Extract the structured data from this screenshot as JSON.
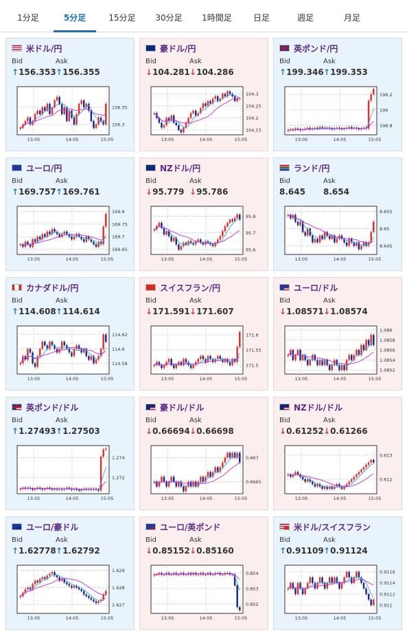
{
  "tabs": [
    "1分足",
    "5分足",
    "15分足",
    "30分足",
    "1時間足",
    "日足",
    "週足",
    "月足"
  ],
  "active_tab": 1,
  "labels": {
    "bid": "Bid",
    "ask": "Ask"
  },
  "colors": {
    "bull": "#e0322d",
    "bear": "#1a2a8c",
    "ma_short": "#3aa6d8",
    "ma_long": "#c42bd6",
    "up_arrow": "#1e7fd0",
    "down_arrow": "#d23c3c",
    "pair_text": "#5b2a86"
  },
  "cards": [
    {
      "pair": "米ドル/円",
      "flag": "us-flag",
      "trend": "up",
      "bid": "156.353",
      "ask": "156.355",
      "chart_data": {
        "type": "candlestick",
        "x_ticks": [
          "13:05",
          "14:05",
          "15:05"
        ],
        "y_ticks": [
          "156.35",
          "156.3"
        ],
        "ylim": [
          156.27,
          156.41
        ],
        "closes": [
          156.29,
          156.3,
          156.31,
          156.32,
          156.3,
          156.31,
          156.33,
          156.34,
          156.33,
          156.35,
          156.34,
          156.36,
          156.33,
          156.35,
          156.37,
          156.38,
          156.36,
          156.33,
          156.35,
          156.31,
          156.34,
          156.32,
          156.3,
          156.33,
          156.36,
          156.37,
          156.35,
          156.36,
          156.34,
          156.31,
          156.29,
          156.3,
          156.32,
          156.31,
          156.3,
          156.36
        ]
      }
    },
    {
      "pair": "豪ドル/円",
      "flag": "au-flag",
      "trend": "down",
      "bid": "104.281",
      "ask": "104.286",
      "chart_data": {
        "type": "candlestick",
        "x_ticks": [
          "13:05",
          "14:05",
          "15:05"
        ],
        "y_ticks": [
          "104.3",
          "104.25",
          "104.2",
          "104.15"
        ],
        "ylim": [
          104.13,
          104.33
        ],
        "closes": [
          104.22,
          104.2,
          104.18,
          104.16,
          104.17,
          104.2,
          104.19,
          104.21,
          104.18,
          104.17,
          104.15,
          104.14,
          104.16,
          104.18,
          104.2,
          104.22,
          104.23,
          104.21,
          104.22,
          104.24,
          104.26,
          104.25,
          104.27,
          104.26,
          104.28,
          104.29,
          104.27,
          104.28,
          104.3,
          104.29,
          104.31,
          104.3,
          104.29,
          104.27,
          104.28,
          104.28
        ]
      }
    },
    {
      "pair": "英ポンド/円",
      "flag": "gb-flag",
      "trend": "up",
      "bid": "199.346",
      "ask": "199.353",
      "chart_data": {
        "type": "candlestick",
        "x_ticks": [
          "13:05",
          "14:05",
          "15:05"
        ],
        "y_ticks": [
          "199.2",
          "199",
          "198.8"
        ],
        "ylim": [
          198.68,
          199.3
        ],
        "closes": [
          198.74,
          198.75,
          198.74,
          198.76,
          198.75,
          198.74,
          198.75,
          198.76,
          198.77,
          198.75,
          198.76,
          198.77,
          198.76,
          198.78,
          198.77,
          198.76,
          198.77,
          198.76,
          198.75,
          198.76,
          198.77,
          198.76,
          198.75,
          198.76,
          198.77,
          198.78,
          198.76,
          198.77,
          198.76,
          198.75,
          198.76,
          198.77,
          198.76,
          199.12,
          199.2,
          199.27
        ]
      }
    },
    {
      "pair": "ユーロ/円",
      "flag": "eu-flag",
      "trend": "up",
      "bid": "169.757",
      "ask": "169.761",
      "chart_data": {
        "type": "candlestick",
        "x_ticks": [
          "13:05",
          "14:05",
          "15:05"
        ],
        "y_ticks": [
          "169.8",
          "169.75",
          "169.7",
          "169.65"
        ],
        "ylim": [
          169.63,
          169.82
        ],
        "closes": [
          169.67,
          169.66,
          169.68,
          169.67,
          169.66,
          169.69,
          169.68,
          169.7,
          169.69,
          169.71,
          169.7,
          169.72,
          169.71,
          169.73,
          169.72,
          169.71,
          169.7,
          169.71,
          169.72,
          169.71,
          169.7,
          169.69,
          169.7,
          169.71,
          169.7,
          169.69,
          169.68,
          169.7,
          169.69,
          169.68,
          169.67,
          169.66,
          169.68,
          169.67,
          169.74,
          169.79
        ]
      }
    },
    {
      "pair": "NZドル/円",
      "flag": "nz-flag",
      "trend": "down",
      "bid": "95.779",
      "ask": "95.786",
      "chart_data": {
        "type": "candlestick",
        "x_ticks": [
          "13:05",
          "14:05",
          "15:05"
        ],
        "y_ticks": [
          "95.8",
          "95.7",
          "95.6"
        ],
        "ylim": [
          95.57,
          95.86
        ],
        "closes": [
          95.72,
          95.74,
          95.76,
          95.73,
          95.69,
          95.71,
          95.68,
          95.65,
          95.67,
          95.63,
          95.6,
          95.62,
          95.64,
          95.63,
          95.65,
          95.64,
          95.63,
          95.65,
          95.66,
          95.64,
          95.63,
          95.65,
          95.64,
          95.63,
          95.62,
          95.64,
          95.66,
          95.68,
          95.71,
          95.74,
          95.76,
          95.78,
          95.77,
          95.79,
          95.81,
          95.78
        ]
      }
    },
    {
      "pair": "ランド/円",
      "flag": "za-flag",
      "trend": "none",
      "bid": "8.645",
      "ask": "8.654",
      "chart_data": {
        "type": "candlestick",
        "x_ticks": [
          "13:05",
          "14:05",
          "15:05"
        ],
        "y_ticks": [
          "8.655",
          "8.65",
          "8.645"
        ],
        "ylim": [
          8.6425,
          8.6565
        ],
        "closes": [
          8.654,
          8.653,
          8.654,
          8.652,
          8.651,
          8.652,
          8.649,
          8.648,
          8.65,
          8.648,
          8.646,
          8.647,
          8.646,
          8.648,
          8.647,
          8.649,
          8.648,
          8.647,
          8.648,
          8.646,
          8.647,
          8.648,
          8.647,
          8.646,
          8.645,
          8.647,
          8.646,
          8.645,
          8.646,
          8.644,
          8.645,
          8.646,
          8.645,
          8.646,
          8.649,
          8.652
        ]
      }
    },
    {
      "pair": "カナダドル/円",
      "flag": "ca-flag",
      "trend": "up",
      "bid": "114.608",
      "ask": "114.614",
      "chart_data": {
        "type": "candlestick",
        "x_ticks": [
          "13:05",
          "14:05",
          "15:05"
        ],
        "y_ticks": [
          "114.62",
          "114.6",
          "114.58"
        ],
        "ylim": [
          114.565,
          114.632
        ],
        "closes": [
          114.58,
          114.59,
          114.585,
          114.6,
          114.595,
          114.58,
          114.575,
          114.59,
          114.6,
          114.61,
          114.605,
          114.6,
          114.61,
          114.605,
          114.6,
          114.595,
          114.6,
          114.61,
          114.605,
          114.6,
          114.595,
          114.59,
          114.6,
          114.605,
          114.6,
          114.595,
          114.6,
          114.59,
          114.585,
          114.59,
          114.58,
          114.585,
          114.59,
          114.6,
          114.62,
          114.61
        ]
      }
    },
    {
      "pair": "スイスフラン/円",
      "flag": "ch-flag",
      "trend": "down",
      "bid": "171.591",
      "ask": "171.607",
      "chart_data": {
        "type": "candlestick",
        "x_ticks": [
          "13:05",
          "14:05",
          "15:05"
        ],
        "y_ticks": [
          "171.6",
          "171.55",
          "171.5"
        ],
        "ylim": [
          171.47,
          171.63
        ],
        "closes": [
          171.5,
          171.51,
          171.5,
          171.49,
          171.5,
          171.51,
          171.52,
          171.5,
          171.49,
          171.5,
          171.51,
          171.5,
          171.52,
          171.51,
          171.5,
          171.49,
          171.5,
          171.51,
          171.52,
          171.53,
          171.52,
          171.51,
          171.53,
          171.52,
          171.51,
          171.52,
          171.53,
          171.52,
          171.51,
          171.52,
          171.51,
          171.5,
          171.52,
          171.51,
          171.56,
          171.61
        ]
      }
    },
    {
      "pair": "ユーロ/ドル",
      "flag": "eu-us-flag",
      "trend": "down",
      "bid": "1.08571",
      "ask": "1.08574",
      "chart_data": {
        "type": "candlestick",
        "x_ticks": [
          "13:05",
          "14:05",
          "15:05"
        ],
        "y_ticks": [
          "1.086",
          "1.0858",
          "1.0856",
          "1.0854",
          "1.0852"
        ],
        "ylim": [
          1.08512,
          1.08608
        ],
        "closes": [
          1.0855,
          1.0856,
          1.0854,
          1.0855,
          1.0856,
          1.0854,
          1.0855,
          1.0854,
          1.0853,
          1.0854,
          1.0855,
          1.0854,
          1.0853,
          1.0854,
          1.0853,
          1.0854,
          1.0853,
          1.0852,
          1.0853,
          1.0854,
          1.0853,
          1.0852,
          1.0853,
          1.0852,
          1.0854,
          1.0855,
          1.0854,
          1.0855,
          1.0856,
          1.0855,
          1.0857,
          1.0856,
          1.0858,
          1.0857,
          1.0859,
          1.0857
        ]
      }
    },
    {
      "pair": "英ポンド/ドル",
      "flag": "gb-us-flag",
      "trend": "up",
      "bid": "1.27493",
      "ask": "1.27503",
      "chart_data": {
        "type": "candlestick",
        "x_ticks": [
          "13:05",
          "14:05",
          "15:05"
        ],
        "y_ticks": [
          "1.274",
          "1.272"
        ],
        "ylim": [
          1.2704,
          1.2752
        ],
        "closes": [
          1.2709,
          1.271,
          1.2709,
          1.271,
          1.2709,
          1.2708,
          1.2709,
          1.271,
          1.2709,
          1.2708,
          1.2709,
          1.271,
          1.2709,
          1.2708,
          1.2709,
          1.2708,
          1.2709,
          1.2708,
          1.2709,
          1.271,
          1.2709,
          1.2708,
          1.2709,
          1.2708,
          1.2707,
          1.2708,
          1.2709,
          1.2708,
          1.2709,
          1.2708,
          1.2709,
          1.2708,
          1.2707,
          1.2741,
          1.2748,
          1.2749
        ]
      }
    },
    {
      "pair": "豪ドル/ドル",
      "flag": "au-us-flag",
      "trend": "down",
      "bid": "0.66694",
      "ask": "0.66698",
      "chart_data": {
        "type": "candlestick",
        "x_ticks": [
          "13:05",
          "14:05",
          "15:05"
        ],
        "y_ticks": [
          "0.667",
          "0.6665"
        ],
        "ylim": [
          0.66625,
          0.66725
        ],
        "closes": [
          0.6665,
          0.6664,
          0.6665,
          0.6666,
          0.6665,
          0.6664,
          0.6665,
          0.6666,
          0.6665,
          0.6664,
          0.6665,
          0.6664,
          0.6663,
          0.6664,
          0.6665,
          0.6664,
          0.6665,
          0.6664,
          0.6665,
          0.6666,
          0.6665,
          0.6666,
          0.6667,
          0.6666,
          0.6667,
          0.6668,
          0.6667,
          0.6668,
          0.6669,
          0.667,
          0.6671,
          0.667,
          0.6671,
          0.667,
          0.6671,
          0.6669
        ]
      }
    },
    {
      "pair": "NZドル/ドル",
      "flag": "nz-us-flag",
      "trend": "down",
      "bid": "0.61252",
      "ask": "0.61266",
      "chart_data": {
        "type": "candlestick",
        "x_ticks": [
          "13:05",
          "14:05",
          "15:05"
        ],
        "y_ticks": [
          "0.613",
          "0.612"
        ],
        "ylim": [
          0.6114,
          0.6134
        ],
        "closes": [
          0.6122,
          0.6121,
          0.6122,
          0.6123,
          0.6122,
          0.6121,
          0.612,
          0.6119,
          0.612,
          0.6119,
          0.6118,
          0.6117,
          0.6118,
          0.6117,
          0.6116,
          0.6117,
          0.6116,
          0.6117,
          0.6116,
          0.6117,
          0.6118,
          0.6117,
          0.6116,
          0.6117,
          0.6118,
          0.6119,
          0.612,
          0.6121,
          0.6122,
          0.6123,
          0.6124,
          0.6125,
          0.6126,
          0.6127,
          0.6128,
          0.6127
        ]
      }
    },
    {
      "pair": "ユーロ/豪ドル",
      "flag": "eu-au-flag",
      "trend": "up",
      "bid": "1.62778",
      "ask": "1.62792",
      "chart_data": {
        "type": "candlestick",
        "x_ticks": [
          "13:05",
          "14:05",
          "15:05"
        ],
        "y_ticks": [
          "1.629",
          "1.628",
          "1.627"
        ],
        "ylim": [
          1.6265,
          1.6293
        ],
        "closes": [
          1.6275,
          1.6277,
          1.6279,
          1.628,
          1.6279,
          1.6282,
          1.6284,
          1.6283,
          1.6285,
          1.6286,
          1.6285,
          1.6287,
          1.6288,
          1.6289,
          1.6287,
          1.6286,
          1.6284,
          1.6285,
          1.6283,
          1.6282,
          1.6281,
          1.628,
          1.6281,
          1.628,
          1.6279,
          1.6278,
          1.6276,
          1.6275,
          1.6274,
          1.6273,
          1.6272,
          1.6271,
          1.6272,
          1.6273,
          1.6276,
          1.6278
        ]
      }
    },
    {
      "pair": "ユーロ/英ポンド",
      "flag": "eu-gb-flag",
      "trend": "down",
      "bid": "0.85152",
      "ask": "0.85160",
      "chart_data": {
        "type": "candlestick",
        "x_ticks": [
          "13:05",
          "14:05",
          "15:05"
        ],
        "y_ticks": [
          "0.854",
          "0.853",
          "0.852"
        ],
        "ylim": [
          0.8514,
          0.8545
        ],
        "closes": [
          0.8539,
          0.8539,
          0.854,
          0.8539,
          0.8539,
          0.854,
          0.8539,
          0.8539,
          0.854,
          0.8539,
          0.8539,
          0.854,
          0.8539,
          0.8539,
          0.854,
          0.8539,
          0.854,
          0.8539,
          0.8539,
          0.854,
          0.8539,
          0.8539,
          0.854,
          0.8539,
          0.8539,
          0.854,
          0.854,
          0.8539,
          0.8539,
          0.854,
          0.854,
          0.8539,
          0.8539,
          0.8532,
          0.8518,
          0.8516
        ]
      }
    },
    {
      "pair": "米ドル/スイスフラン",
      "flag": "us-ch-flag",
      "trend": "up",
      "bid": "0.91109",
      "ask": "0.91124",
      "chart_data": {
        "type": "candlestick",
        "x_ticks": [
          "13:05",
          "14:05",
          "15:05"
        ],
        "y_ticks": [
          "0.9116",
          "0.9114",
          "0.9112",
          "0.911"
        ],
        "ylim": [
          0.91085,
          0.91172
        ],
        "closes": [
          0.9113,
          0.9114,
          0.9113,
          0.9112,
          0.9114,
          0.9113,
          0.9112,
          0.9113,
          0.9114,
          0.9115,
          0.9114,
          0.9113,
          0.9114,
          0.9115,
          0.9114,
          0.9113,
          0.9114,
          0.9115,
          0.9114,
          0.9115,
          0.9114,
          0.9113,
          0.9114,
          0.9115,
          0.9116,
          0.9115,
          0.9114,
          0.9115,
          0.9116,
          0.9115,
          0.9114,
          0.9113,
          0.9112,
          0.9111,
          0.911,
          0.9111
        ]
      }
    }
  ]
}
